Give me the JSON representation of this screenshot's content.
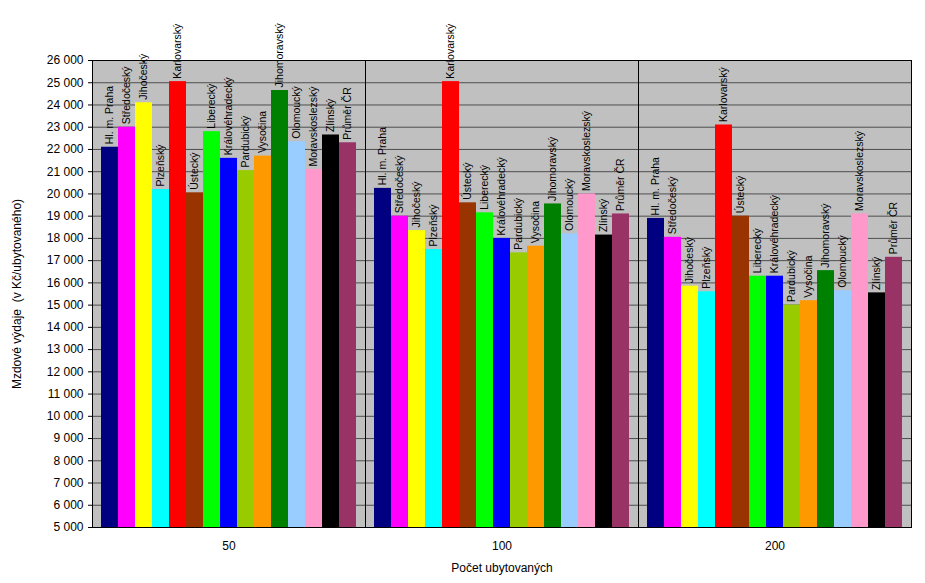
{
  "chart_data": {
    "type": "bar",
    "x_label": "Počet ubytovaných",
    "y_label": "Mzdové výdaje  (v Kč/ubytovaného)",
    "categories": [
      "50",
      "100",
      "200"
    ],
    "series": [
      {
        "name": "Hl. m. Praha",
        "color": "#000080",
        "values": [
          22100,
          20250,
          18900
        ]
      },
      {
        "name": "Středočeský",
        "color": "#ff00ff",
        "values": [
          23000,
          19000,
          18050
        ]
      },
      {
        "name": "Jihočeský",
        "color": "#ffff00",
        "values": [
          24100,
          18350,
          15850
        ]
      },
      {
        "name": "Plzeňský",
        "color": "#00ffff",
        "values": [
          20200,
          17500,
          15600
        ]
      },
      {
        "name": "Karlovarský",
        "color": "#ff0000",
        "values": [
          25050,
          25050,
          23100
        ]
      },
      {
        "name": "Ústecký",
        "color": "#993300",
        "values": [
          20050,
          19600,
          19000
        ]
      },
      {
        "name": "Liberecký",
        "color": "#00ff00",
        "values": [
          22800,
          19150,
          16300
        ]
      },
      {
        "name": "Královéhradecký",
        "color": "#0000ff",
        "values": [
          21600,
          18000,
          16300
        ]
      },
      {
        "name": "Pardubický",
        "color": "#99cc00",
        "values": [
          21050,
          17350,
          15000
        ]
      },
      {
        "name": "Vysočina",
        "color": "#ff9900",
        "values": [
          21700,
          17650,
          15200
        ]
      },
      {
        "name": "Jihomoravský",
        "color": "#008000",
        "values": [
          24650,
          19550,
          16550
        ]
      },
      {
        "name": "Olomoucký",
        "color": "#99ccff",
        "values": [
          22350,
          18200,
          15650
        ]
      },
      {
        "name": "Moravskoslezský",
        "color": "#ff99cc",
        "values": [
          21100,
          20000,
          19100
        ]
      },
      {
        "name": "Zlínský",
        "color": "#000000",
        "values": [
          22650,
          18150,
          15550
        ]
      },
      {
        "name": "Průměr ČR",
        "color": "#993366",
        "values": [
          22300,
          19100,
          17150
        ]
      }
    ],
    "ylim": [
      5000,
      26000
    ],
    "yticks": [
      {
        "value": 5000,
        "label": "5 000"
      },
      {
        "value": 6000,
        "label": "6 000"
      },
      {
        "value": 7000,
        "label": "7 000"
      },
      {
        "value": 8000,
        "label": "8 000"
      },
      {
        "value": 9000,
        "label": "9 000"
      },
      {
        "value": 10000,
        "label": "10 000"
      },
      {
        "value": 11000,
        "label": "11 000"
      },
      {
        "value": 12000,
        "label": "12 000"
      },
      {
        "value": 13000,
        "label": "13 000"
      },
      {
        "value": 14000,
        "label": "14 000"
      },
      {
        "value": 15000,
        "label": "15 000"
      },
      {
        "value": 16000,
        "label": "16 000"
      },
      {
        "value": 17000,
        "label": "17 000"
      },
      {
        "value": 18000,
        "label": "18 000"
      },
      {
        "value": 19000,
        "label": "19 000"
      },
      {
        "value": 20000,
        "label": "20 000"
      },
      {
        "value": 21000,
        "label": "21 000"
      },
      {
        "value": 22000,
        "label": "22 000"
      },
      {
        "value": 23000,
        "label": "23 000"
      },
      {
        "value": 24000,
        "label": "24 000"
      },
      {
        "value": 25000,
        "label": "25 000"
      },
      {
        "value": 26000,
        "label": "26 000"
      }
    ],
    "grid": true
  }
}
